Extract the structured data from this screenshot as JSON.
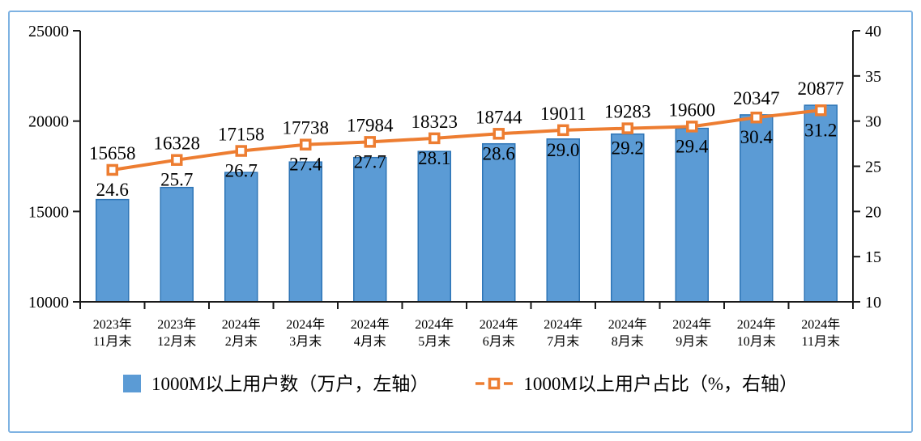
{
  "chart_data": {
    "type": "bar+line combo",
    "title": "",
    "categories": [
      "2023年\n11月末",
      "2023年\n12月末",
      "2024年\n2月末",
      "2024年\n3月末",
      "2024年\n4月末",
      "2024年\n5月末",
      "2024年\n6月末",
      "2024年\n7月末",
      "2024年\n8月末",
      "2024年\n9月末",
      "2024年\n10月末",
      "2024年\n11月末"
    ],
    "series": [
      {
        "name": "1000M以上用户数（万户，左轴）",
        "type": "bar",
        "axis": "left",
        "values": [
          15658,
          16328,
          17158,
          17738,
          17984,
          18323,
          18744,
          19011,
          19283,
          19600,
          20347,
          20877
        ],
        "color": "#5B9BD5",
        "border_color": "#2E75B6"
      },
      {
        "name": "1000M以上用户占比（%，右轴）",
        "type": "line",
        "axis": "right",
        "values": [
          24.6,
          25.7,
          26.7,
          27.4,
          27.7,
          28.1,
          28.6,
          29.0,
          29.2,
          29.4,
          30.4,
          31.2
        ],
        "color": "#ED7D31",
        "marker": "open-square"
      }
    ],
    "left_axis": {
      "min": 10000,
      "max": 25000,
      "tick_labels": [
        "10000",
        "15000",
        "20000",
        "25000"
      ]
    },
    "right_axis": {
      "min": 10,
      "max": 40,
      "tick_labels": [
        "10",
        "15",
        "20",
        "25",
        "30",
        "35",
        "40"
      ]
    },
    "grid": false,
    "legend_position": "bottom",
    "data_labels": true,
    "colors": {
      "axis_line": "#1a1a1a",
      "label_text": "#000000",
      "frame_border": "#7EB2E2"
    }
  }
}
